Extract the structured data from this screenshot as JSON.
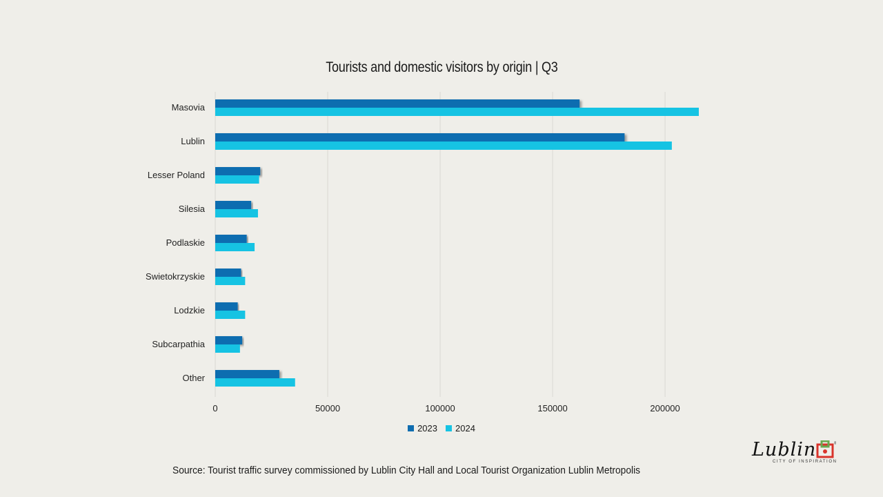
{
  "chart_data": {
    "type": "bar",
    "orientation": "horizontal",
    "title": "Tourists and domestic visitors by origin | Q3",
    "categories": [
      "Masovia",
      "Lublin",
      "Lesser Poland",
      "Silesia",
      "Podlaskie",
      "Swietokrzyskie",
      "Lodzkie",
      "Subcarpathia",
      "Other"
    ],
    "series": [
      {
        "name": "2023",
        "color": "#0f6db0",
        "values": [
          162000,
          182000,
          20000,
          16000,
          14000,
          11500,
          10000,
          12000,
          28500
        ]
      },
      {
        "name": "2024",
        "color": "#16c3e3",
        "values": [
          215000,
          203000,
          19500,
          19000,
          17500,
          13300,
          13300,
          11000,
          35500
        ]
      }
    ],
    "xlim": [
      0,
      215000
    ],
    "xticks": [
      "0",
      "50000",
      "100000",
      "150000",
      "200000"
    ],
    "xtick_values": [
      0,
      50000,
      100000,
      150000,
      200000
    ],
    "grid": true,
    "legend_position": "bottom"
  },
  "footer": {
    "source": "Source: Tourist traffic survey commissioned by Lublin City Hall and Local Tourist Organization Lublin Metropolis"
  },
  "logo": {
    "wordmark": "Lublin",
    "tagline": "CITY OF INSPIRATION"
  }
}
